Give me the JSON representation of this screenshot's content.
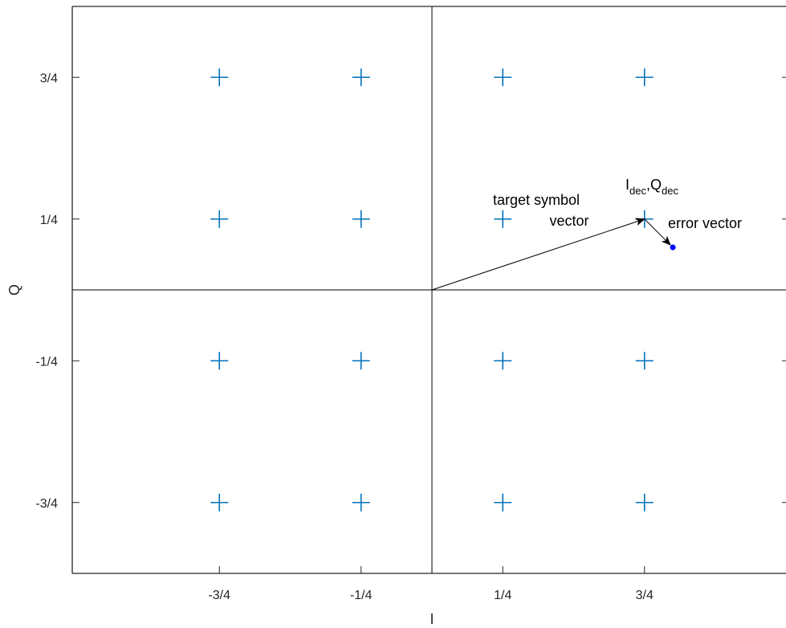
{
  "chart_data": {
    "type": "scatter",
    "title": "",
    "xlabel": "I",
    "ylabel": "Q",
    "xlim": [
      -1,
      1
    ],
    "ylim": [
      -1,
      1
    ],
    "grid": false,
    "xticks": [
      -0.75,
      -0.25,
      0.25,
      0.75
    ],
    "xtick_labels": [
      "-3/4",
      "-1/4",
      "1/4",
      "3/4"
    ],
    "yticks": [
      -0.75,
      -0.25,
      0.25,
      0.75
    ],
    "ytick_labels": [
      "-3/4",
      "-1/4",
      "1/4",
      "3/4"
    ],
    "constellation_points": [
      {
        "x": -0.75,
        "y": 0.75
      },
      {
        "x": -0.25,
        "y": 0.75
      },
      {
        "x": 0.25,
        "y": 0.75
      },
      {
        "x": 0.75,
        "y": 0.75
      },
      {
        "x": -0.75,
        "y": 0.25
      },
      {
        "x": -0.25,
        "y": 0.25
      },
      {
        "x": 0.25,
        "y": 0.25
      },
      {
        "x": 0.75,
        "y": 0.25
      },
      {
        "x": -0.75,
        "y": -0.25
      },
      {
        "x": -0.25,
        "y": -0.25
      },
      {
        "x": 0.25,
        "y": -0.25
      },
      {
        "x": 0.75,
        "y": -0.25
      },
      {
        "x": -0.75,
        "y": -0.75
      },
      {
        "x": -0.25,
        "y": -0.75
      },
      {
        "x": 0.25,
        "y": -0.75
      },
      {
        "x": 0.75,
        "y": -0.75
      }
    ],
    "measured_point": {
      "x": 0.85,
      "y": 0.15
    },
    "target_vector": {
      "from": [
        0,
        0
      ],
      "to": [
        0.75,
        0.25
      ]
    },
    "error_vector": {
      "from": [
        0.75,
        0.25
      ],
      "to": [
        0.85,
        0.15
      ]
    },
    "annotations": {
      "target_line1": "target symbol",
      "target_line2": "vector",
      "error": "error vector",
      "decision_I": "I",
      "decision_I_sub": "dec",
      "decision_sep": ",",
      "decision_Q": "Q",
      "decision_Q_sub": "dec"
    },
    "colors": {
      "constellation": "#0072BD",
      "measured": "#0000FF",
      "axes": "#000000",
      "vector": "#000000"
    }
  }
}
